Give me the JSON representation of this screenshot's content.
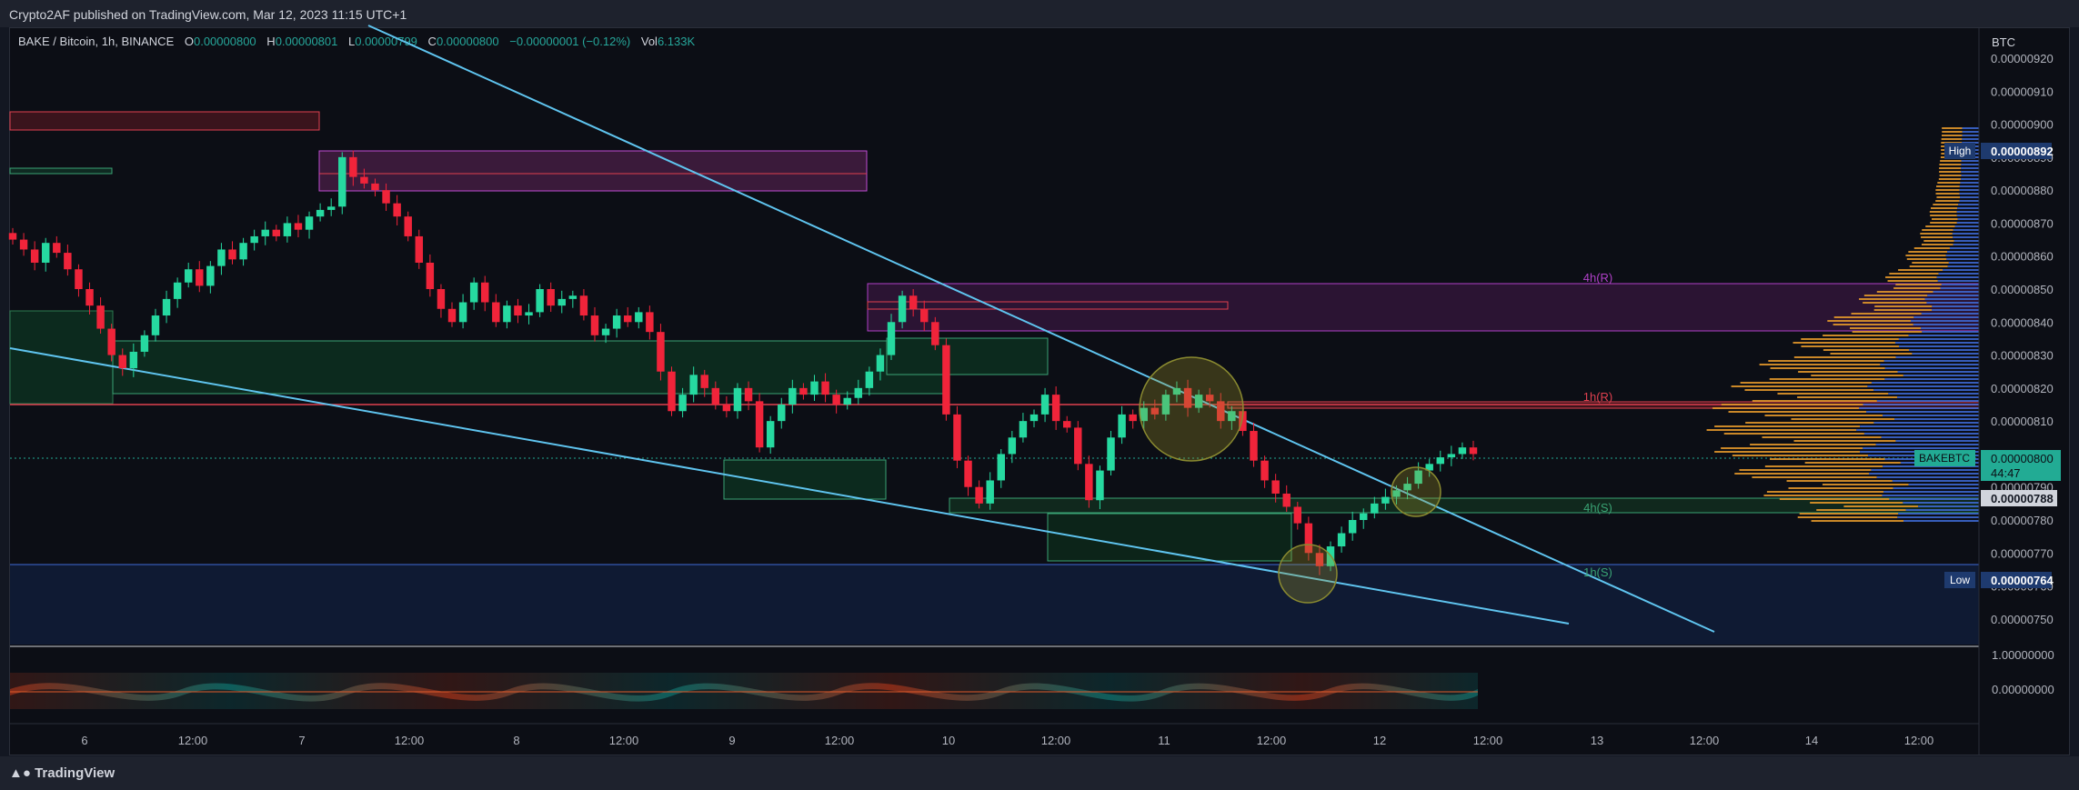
{
  "header": {
    "published": "Crypto2AF published on TradingView.com, Mar 12, 2023 11:15 UTC+1"
  },
  "legend": {
    "symbol": "BAKE / Bitcoin, 1h, BINANCE",
    "o_label": "O",
    "o": "0.00000800",
    "h_label": "H",
    "h": "0.00000801",
    "l_label": "L",
    "l": "0.00000799",
    "c_label": "C",
    "c": "0.00000800",
    "change": "−0.00000001 (−0.12%)",
    "vol_label": "Vol",
    "vol": "6.133K"
  },
  "footer": {
    "brand": "TradingView"
  },
  "chart_data": {
    "type": "candlestick",
    "symbol": "BAKEBTC",
    "interval": "1h",
    "exchange": "BINANCE",
    "currency": "BTC",
    "ylim": [
      7.45e-06,
      9.2e-06
    ],
    "y_ticks": [
      "0.00000920",
      "0.00000910",
      "0.00000900",
      "0.00000890",
      "0.00000880",
      "0.00000870",
      "0.00000860",
      "0.00000850",
      "0.00000840",
      "0.00000830",
      "0.00000820",
      "0.00000810",
      "0.00000800",
      "0.00000790",
      "0.00000780",
      "0.00000770",
      "0.00000760",
      "0.00000750"
    ],
    "x_ticks": [
      "6",
      "12:00",
      "7",
      "12:00",
      "8",
      "12:00",
      "9",
      "12:00",
      "10",
      "12:00",
      "11",
      "12:00",
      "12",
      "12:00",
      "13",
      "12:00",
      "14",
      "12:00"
    ],
    "price_labels": {
      "high_label": "High",
      "high": "0.00000892",
      "low_label": "Low",
      "low": "0.00000764",
      "last_symbol": "BAKEBTC",
      "last": "0.00000800",
      "countdown": "44:47",
      "marker": "0.00000788"
    },
    "zone_labels": [
      "4h(R)",
      "1h(R)",
      "4h(S)",
      "1h(S)"
    ],
    "closes": [
      8.65e-06,
      8.62e-06,
      8.58e-06,
      8.64e-06,
      8.61e-06,
      8.56e-06,
      8.5e-06,
      8.45e-06,
      8.38e-06,
      8.3e-06,
      8.26e-06,
      8.31e-06,
      8.36e-06,
      8.42e-06,
      8.47e-06,
      8.52e-06,
      8.56e-06,
      8.51e-06,
      8.57e-06,
      8.62e-06,
      8.59e-06,
      8.64e-06,
      8.66e-06,
      8.68e-06,
      8.66e-06,
      8.7e-06,
      8.68e-06,
      8.72e-06,
      8.74e-06,
      8.75e-06,
      8.9e-06,
      8.84e-06,
      8.82e-06,
      8.8e-06,
      8.76e-06,
      8.72e-06,
      8.66e-06,
      8.58e-06,
      8.5e-06,
      8.44e-06,
      8.4e-06,
      8.46e-06,
      8.52e-06,
      8.46e-06,
      8.4e-06,
      8.45e-06,
      8.42e-06,
      8.43e-06,
      8.5e-06,
      8.45e-06,
      8.47e-06,
      8.48e-06,
      8.42e-06,
      8.36e-06,
      8.38e-06,
      8.42e-06,
      8.4e-06,
      8.43e-06,
      8.37e-06,
      8.25e-06,
      8.13e-06,
      8.18e-06,
      8.24e-06,
      8.2e-06,
      8.15e-06,
      8.13e-06,
      8.2e-06,
      8.16e-06,
      8.02e-06,
      8.1e-06,
      8.15e-06,
      8.2e-06,
      8.18e-06,
      8.22e-06,
      8.18e-06,
      8.15e-06,
      8.17e-06,
      8.2e-06,
      8.25e-06,
      8.3e-06,
      8.4e-06,
      8.48e-06,
      8.44e-06,
      8.4e-06,
      8.33e-06,
      8.12e-06,
      7.98e-06,
      7.9e-06,
      7.85e-06,
      7.92e-06,
      8e-06,
      8.05e-06,
      8.1e-06,
      8.12e-06,
      8.18e-06,
      8.1e-06,
      8.08e-06,
      7.97e-06,
      7.86e-06,
      7.95e-06,
      8.05e-06,
      8.12e-06,
      8.1e-06,
      8.14e-06,
      8.12e-06,
      8.18e-06,
      8.2e-06,
      8.14e-06,
      8.18e-06,
      8.16e-06,
      8.1e-06,
      8.13e-06,
      8.07e-06,
      7.98e-06,
      7.92e-06,
      7.88e-06,
      7.84e-06,
      7.79e-06,
      7.7e-06,
      7.66e-06,
      7.72e-06,
      7.76e-06,
      7.8e-06,
      7.82e-06,
      7.85e-06,
      7.87e-06,
      7.89e-06,
      7.91e-06,
      7.95e-06,
      7.97e-06,
      7.99e-06,
      8e-06,
      8.02e-06,
      8e-06
    ]
  }
}
